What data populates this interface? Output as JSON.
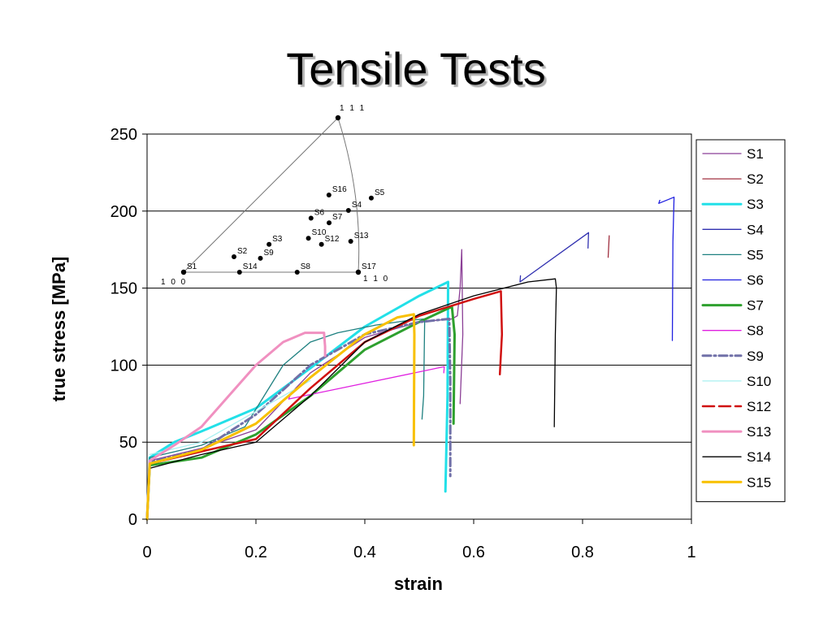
{
  "slide": {
    "title": "Tensile Tests"
  },
  "chart_data": {
    "type": "line",
    "xlabel": "strain",
    "ylabel": "true stress [MPa]",
    "xlim": [
      0,
      1
    ],
    "ylim": [
      0,
      250
    ],
    "x_ticks": [
      "0",
      "0.2",
      "0.4",
      "0.6",
      "0.8",
      "1"
    ],
    "y_ticks": [
      "0",
      "50",
      "100",
      "150",
      "200",
      "250"
    ],
    "grid": "horizontal",
    "legend_position": "right",
    "series": [
      {
        "name": "S1",
        "color": "#8b3f96",
        "style": "solid",
        "points": [
          [
            0,
            0
          ],
          [
            0.005,
            38
          ],
          [
            0.1,
            46
          ],
          [
            0.2,
            58
          ],
          [
            0.3,
            95
          ],
          [
            0.4,
            118
          ],
          [
            0.5,
            128
          ],
          [
            0.56,
            130
          ],
          [
            0.57,
            132
          ],
          [
            0.575,
            150
          ],
          [
            0.578,
            175
          ],
          [
            0.58,
            120
          ],
          [
            0.575,
            75
          ]
        ]
      },
      {
        "name": "S2",
        "color": "#a03040",
        "style": "solid",
        "points": [
          [
            0.847,
            170
          ],
          [
            0.849,
            184
          ]
        ]
      },
      {
        "name": "S3",
        "color": "#22e0e8",
        "style": "thick",
        "points": [
          [
            0,
            0
          ],
          [
            0.005,
            40
          ],
          [
            0.05,
            50
          ],
          [
            0.1,
            57
          ],
          [
            0.2,
            72
          ],
          [
            0.3,
            98
          ],
          [
            0.4,
            125
          ],
          [
            0.5,
            145
          ],
          [
            0.553,
            154
          ],
          [
            0.552,
            80
          ],
          [
            0.548,
            18
          ]
        ]
      },
      {
        "name": "S4",
        "color": "#3030b0",
        "style": "solid",
        "points": [
          [
            0.81,
            176
          ],
          [
            0.811,
            186
          ],
          [
            0.685,
            154
          ],
          [
            0.686,
            158
          ]
        ]
      },
      {
        "name": "S5",
        "color": "#1e8080",
        "style": "solid",
        "points": [
          [
            0,
            0
          ],
          [
            0.005,
            40
          ],
          [
            0.1,
            48
          ],
          [
            0.18,
            60
          ],
          [
            0.25,
            100
          ],
          [
            0.3,
            115
          ],
          [
            0.35,
            121
          ],
          [
            0.42,
            126
          ],
          [
            0.48,
            129
          ],
          [
            0.51,
            130
          ],
          [
            0.508,
            80
          ],
          [
            0.505,
            65
          ]
        ]
      },
      {
        "name": "S6",
        "color": "#2020e0",
        "style": "solid",
        "points": [
          [
            0.965,
            116
          ],
          [
            0.966,
            180
          ],
          [
            0.968,
            209
          ],
          [
            0.94,
            205
          ],
          [
            0.942,
            207
          ]
        ]
      },
      {
        "name": "S7",
        "color": "#2ea02e",
        "style": "thick",
        "points": [
          [
            0,
            0
          ],
          [
            0.005,
            35
          ],
          [
            0.1,
            40
          ],
          [
            0.2,
            55
          ],
          [
            0.3,
            80
          ],
          [
            0.4,
            110
          ],
          [
            0.5,
            128
          ],
          [
            0.56,
            138
          ],
          [
            0.565,
            120
          ],
          [
            0.563,
            62
          ]
        ]
      },
      {
        "name": "S8",
        "color": "#e020e0",
        "style": "solid",
        "points": [
          [
            0.545,
            95
          ],
          [
            0.546,
            99
          ],
          [
            0.26,
            78
          ],
          [
            0.265,
            82
          ]
        ]
      },
      {
        "name": "S9",
        "color": "#7070a8",
        "style": "dashdot",
        "points": [
          [
            0,
            0
          ],
          [
            0.005,
            37
          ],
          [
            0.1,
            45
          ],
          [
            0.2,
            68
          ],
          [
            0.3,
            100
          ],
          [
            0.4,
            120
          ],
          [
            0.5,
            128
          ],
          [
            0.555,
            130
          ],
          [
            0.557,
            90
          ],
          [
            0.557,
            28
          ]
        ]
      },
      {
        "name": "S10",
        "color": "#a8f0f0",
        "style": "solid",
        "points": [
          [
            0.005,
            42
          ],
          [
            0.1,
            50
          ],
          [
            0.2,
            70
          ],
          [
            0.3,
            90
          ]
        ]
      },
      {
        "name": "S12",
        "color": "#d01010",
        "style": "dashed-thick",
        "points": [
          [
            0,
            0
          ],
          [
            0.005,
            36
          ],
          [
            0.1,
            44
          ],
          [
            0.2,
            52
          ],
          [
            0.3,
            85
          ],
          [
            0.4,
            115
          ],
          [
            0.5,
            132
          ],
          [
            0.6,
            143
          ],
          [
            0.65,
            148
          ],
          [
            0.652,
            120
          ],
          [
            0.648,
            94
          ]
        ]
      },
      {
        "name": "S13",
        "color": "#f090c0",
        "style": "thick",
        "points": [
          [
            0,
            0
          ],
          [
            0.005,
            38
          ],
          [
            0.05,
            48
          ],
          [
            0.1,
            60
          ],
          [
            0.15,
            80
          ],
          [
            0.2,
            100
          ],
          [
            0.25,
            115
          ],
          [
            0.29,
            121
          ],
          [
            0.325,
            121
          ],
          [
            0.327,
            112
          ],
          [
            0.327,
            106
          ]
        ]
      },
      {
        "name": "S14",
        "color": "#000000",
        "style": "solid",
        "points": [
          [
            0,
            0
          ],
          [
            0.005,
            33
          ],
          [
            0.1,
            42
          ],
          [
            0.2,
            50
          ],
          [
            0.3,
            80
          ],
          [
            0.4,
            115
          ],
          [
            0.5,
            133
          ],
          [
            0.6,
            145
          ],
          [
            0.7,
            154
          ],
          [
            0.75,
            156
          ],
          [
            0.752,
            150
          ],
          [
            0.75,
            120
          ],
          [
            0.748,
            60
          ]
        ]
      },
      {
        "name": "S15",
        "color": "#f8c000",
        "style": "thick",
        "points": [
          [
            0,
            0
          ],
          [
            0.005,
            36
          ],
          [
            0.1,
            45
          ],
          [
            0.2,
            62
          ],
          [
            0.3,
            92
          ],
          [
            0.4,
            120
          ],
          [
            0.46,
            131
          ],
          [
            0.49,
            133
          ],
          [
            0.491,
            120
          ],
          [
            0.49,
            48
          ]
        ]
      }
    ],
    "inset": {
      "type": "inverse-pole-figure",
      "corners": {
        "c100": "1 0 0",
        "c110": "1 1 0",
        "c111": "1 1 1"
      },
      "points": [
        {
          "label": "S1",
          "a": 0.0,
          "b": 0.0
        },
        {
          "label": "S2",
          "a": 0.2,
          "b": 0.1
        },
        {
          "label": "S3",
          "a": 0.33,
          "b": 0.18
        },
        {
          "label": "S4",
          "a": 0.59,
          "b": 0.4
        },
        {
          "label": "S5",
          "a": 0.65,
          "b": 0.48
        },
        {
          "label": "S6",
          "a": 0.42,
          "b": 0.35
        },
        {
          "label": "S7",
          "a": 0.55,
          "b": 0.32
        },
        {
          "label": "S8",
          "a": 0.65,
          "b": 0.0
        },
        {
          "label": "S9",
          "a": 0.36,
          "b": 0.09
        },
        {
          "label": "S10",
          "a": 0.52,
          "b": 0.22
        },
        {
          "label": "S12",
          "a": 0.63,
          "b": 0.18
        },
        {
          "label": "S13",
          "a": 0.78,
          "b": 0.2
        },
        {
          "label": "S14",
          "a": 0.32,
          "b": 0.0
        },
        {
          "label": "S16",
          "a": 0.39,
          "b": 0.5
        },
        {
          "label": "S17",
          "a": 1.0,
          "b": 0.0
        }
      ]
    }
  }
}
